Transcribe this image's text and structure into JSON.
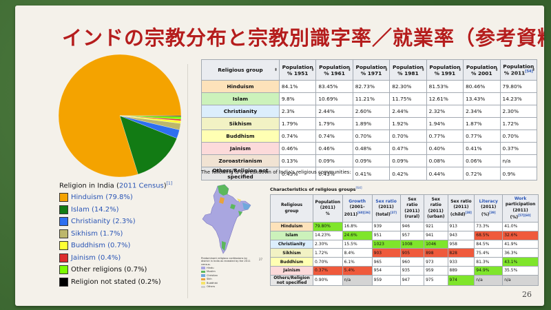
{
  "title": "インドの宗教分布と宗教別識字率／就業率（参考資料）",
  "page_number": "26",
  "legend_caption": {
    "prefix": "Religion in India (",
    "link": "2011 Census",
    "suffix": ")",
    "ref": "[1]"
  },
  "legend": [
    {
      "label": "Hinduism (79.8%)",
      "color": "#f4a300",
      "link": true
    },
    {
      "label": "Islam (14.2%)",
      "color": "#127b14",
      "link": true
    },
    {
      "label": "Christianity (2.3%)",
      "color": "#2e6ff0",
      "link": true
    },
    {
      "label": "Sikhism (1.7%)",
      "color": "#bdb76b",
      "link": true
    },
    {
      "label": "Buddhism (0.7%)",
      "color": "#ffff33",
      "link": true
    },
    {
      "label": "Jainism (0.4%)",
      "color": "#dd2d2d",
      "link": true
    },
    {
      "label": "Other religions (0.7%)",
      "color": "#7cfc00",
      "link": false
    },
    {
      "label": "Religion not stated (0.2%)",
      "color": "#000000",
      "link": false
    }
  ],
  "chart_data": {
    "type": "pie",
    "categories": [
      "Hinduism",
      "Islam",
      "Christianity",
      "Sikhism",
      "Buddhism",
      "Jainism",
      "Other religions",
      "Religion not stated"
    ],
    "values": [
      79.8,
      14.2,
      2.3,
      1.7,
      0.7,
      0.4,
      0.7,
      0.2
    ]
  },
  "table1": {
    "headers": [
      {
        "text": "Religious group"
      },
      {
        "text": "Population % 1951"
      },
      {
        "text": "Population % 1961"
      },
      {
        "text": "Population % 1971"
      },
      {
        "text": "Population % 1981"
      },
      {
        "text": "Population % 1991"
      },
      {
        "text": "Population % 2001"
      },
      {
        "text": "Population % 2011",
        "ref": "[54]"
      }
    ],
    "rows": [
      {
        "religion": "Hinduism",
        "bg": "#fde2ba",
        "values": [
          "84.1%",
          "83.45%",
          "82.73%",
          "82.30%",
          "81.53%",
          "80.46%",
          "79.80%"
        ]
      },
      {
        "religion": "Islam",
        "bg": "#ccf2bb",
        "values": [
          "9.8%",
          "10.69%",
          "11.21%",
          "11.75%",
          "12.61%",
          "13.43%",
          "14.23%"
        ]
      },
      {
        "religion": "Christianity",
        "bg": "#dceefc",
        "values": [
          "2.3%",
          "2.44%",
          "2.60%",
          "2.44%",
          "2.32%",
          "2.34%",
          "2.30%"
        ]
      },
      {
        "religion": "Sikhism",
        "bg": "#f2f2c4",
        "values": [
          "1.79%",
          "1.79%",
          "1.89%",
          "1.92%",
          "1.94%",
          "1.87%",
          "1.72%"
        ]
      },
      {
        "religion": "Buddhism",
        "bg": "#ffffb3",
        "values": [
          "0.74%",
          "0.74%",
          "0.70%",
          "0.70%",
          "0.77%",
          "0.77%",
          "0.70%"
        ]
      },
      {
        "religion": "Jainism",
        "bg": "#fcdada",
        "values": [
          "0.46%",
          "0.46%",
          "0.48%",
          "0.47%",
          "0.40%",
          "0.41%",
          "0.37%"
        ]
      },
      {
        "religion": "Zoroastrianism",
        "bg": "#f1e3d3",
        "values": [
          "0.13%",
          "0.09%",
          "0.09%",
          "0.09%",
          "0.08%",
          "0.06%",
          "n/a"
        ]
      },
      {
        "religion": "Others/Religion not specified",
        "bg": "#e6e6e6",
        "values": [
          "0.43%",
          "0.43%",
          "0.41%",
          "0.42%",
          "0.44%",
          "0.72%",
          "0.9%"
        ]
      }
    ]
  },
  "breakdown_text": "The following is a breakdown of India's religious communities:",
  "map": {
    "note": "Predominant religious confessions by district in India as revealed by the 2011 census.",
    "corner": "27",
    "legend": [
      {
        "label": "Hindu",
        "color": "#a9a6e0"
      },
      {
        "label": "Muslim",
        "color": "#5cb85c"
      },
      {
        "label": "Christian",
        "color": "#6fa8dc"
      },
      {
        "label": "Sikh",
        "color": "#e8a33d"
      },
      {
        "label": "Buddhist",
        "color": "#f6e36a"
      },
      {
        "label": "Others",
        "color": "#cccccc"
      }
    ]
  },
  "table2": {
    "caption": "Characteristics of religious groups",
    "caption_ref": "[64]",
    "headers": [
      {
        "lines": [
          "Religious",
          "group"
        ],
        "link": false
      },
      {
        "lines": [
          "Population",
          "(2011)",
          "%"
        ],
        "link": false
      },
      {
        "lines": [
          "Growth",
          "(2001-2011)"
        ],
        "ref": "[60][36]",
        "link": true
      },
      {
        "lines": [
          "Sex ratio",
          "(2011)",
          "(total)"
        ],
        "ref": "[37]",
        "link": true
      },
      {
        "lines": [
          "Sex",
          "ratio",
          "(2011)",
          "(rural)"
        ],
        "link": false
      },
      {
        "lines": [
          "Sex",
          "ratio",
          "(2011)",
          "(urban)"
        ],
        "link": false
      },
      {
        "lines": [
          "Sex ratio",
          "(2011)",
          "(child)"
        ],
        "ref": "[38]",
        "link": false
      },
      {
        "lines": [
          "Literacy",
          "(2011)",
          "(%)"
        ],
        "ref": "[39]",
        "link": true
      },
      {
        "lines": [
          "Work",
          "participation",
          "(2011)",
          "(%)"
        ],
        "ref": "[57][60]",
        "link": true
      }
    ],
    "rows": [
      {
        "religion": "Hinduism",
        "bg": "#fde2ba",
        "cells": [
          [
            "79.80%",
            "g"
          ],
          [
            "16.8%",
            ""
          ],
          [
            "939",
            ""
          ],
          [
            "946",
            ""
          ],
          [
            "921",
            ""
          ],
          [
            "913",
            ""
          ],
          [
            "73.3%",
            ""
          ],
          [
            "41.0%",
            ""
          ]
        ]
      },
      {
        "religion": "Islam",
        "bg": "#ccf2bb",
        "cells": [
          [
            "14.23%",
            ""
          ],
          [
            "24.6%",
            "g"
          ],
          [
            "951",
            ""
          ],
          [
            "957",
            ""
          ],
          [
            "941",
            ""
          ],
          [
            "943",
            ""
          ],
          [
            "68.5%",
            "r"
          ],
          [
            "32.6%",
            "r"
          ]
        ]
      },
      {
        "religion": "Christianity",
        "bg": "#dceefc",
        "cells": [
          [
            "2.30%",
            ""
          ],
          [
            "15.5%",
            ""
          ],
          [
            "1023",
            "g"
          ],
          [
            "1008",
            "g"
          ],
          [
            "1046",
            "g"
          ],
          [
            "958",
            ""
          ],
          [
            "84.5%",
            ""
          ],
          [
            "41.9%",
            ""
          ]
        ]
      },
      {
        "religion": "Sikhism",
        "bg": "#f2f2c4",
        "cells": [
          [
            "1.72%",
            ""
          ],
          [
            "8.4%",
            ""
          ],
          [
            "903",
            "r"
          ],
          [
            "905",
            "r"
          ],
          [
            "898",
            "r"
          ],
          [
            "828",
            "r"
          ],
          [
            "75.4%",
            ""
          ],
          [
            "36.3%",
            ""
          ]
        ]
      },
      {
        "religion": "Buddhism",
        "bg": "#ffffb3",
        "cells": [
          [
            "0.70%",
            ""
          ],
          [
            "6.1%",
            ""
          ],
          [
            "965",
            ""
          ],
          [
            "960",
            ""
          ],
          [
            "973",
            ""
          ],
          [
            "933",
            ""
          ],
          [
            "81.3%",
            ""
          ],
          [
            "43.1%",
            "g"
          ]
        ]
      },
      {
        "religion": "Jainism",
        "bg": "#fcdada",
        "cells": [
          [
            "0.37%",
            "r"
          ],
          [
            "5.4%",
            "r"
          ],
          [
            "954",
            ""
          ],
          [
            "935",
            ""
          ],
          [
            "959",
            ""
          ],
          [
            "889",
            ""
          ],
          [
            "94.9%",
            "g"
          ],
          [
            "35.5%",
            ""
          ]
        ]
      },
      {
        "religion": "Others/Religion not specified",
        "bg": "#e6e6e6",
        "cells": [
          [
            "0.90%",
            ""
          ],
          [
            "n/a",
            "gy"
          ],
          [
            "959",
            ""
          ],
          [
            "947",
            ""
          ],
          [
            "975",
            ""
          ],
          [
            "974",
            "g"
          ],
          [
            "n/a",
            "gy"
          ],
          [
            "n/a",
            "gy"
          ]
        ]
      }
    ]
  }
}
